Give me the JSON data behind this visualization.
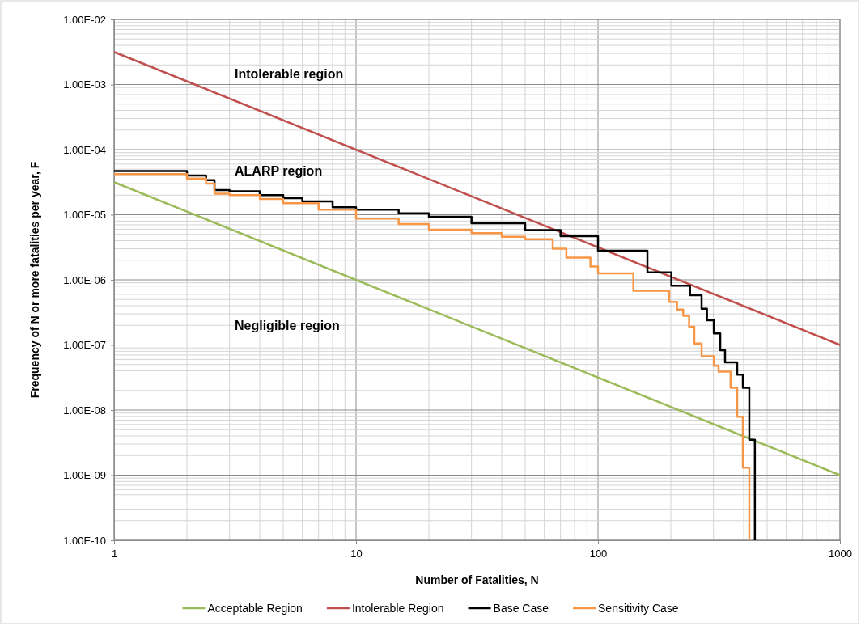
{
  "chart_data": {
    "type": "line",
    "xlabel": "Number of Fatalities, N",
    "ylabel": "Frequency of N or more fatalities per year, F",
    "log": "xy",
    "xlim": [
      1,
      1000
    ],
    "xticks": [
      1,
      10,
      100,
      1000
    ],
    "ylim": [
      1e-10,
      0.01
    ],
    "yticks": [
      {
        "value": 1e-10,
        "label": "1.00E-10"
      },
      {
        "value": 1e-09,
        "label": "1.00E-09"
      },
      {
        "value": 1e-08,
        "label": "1.00E-08"
      },
      {
        "value": 1e-07,
        "label": "1.00E-07"
      },
      {
        "value": 1e-06,
        "label": "1.00E-06"
      },
      {
        "value": 1e-05,
        "label": "1.00E-05"
      },
      {
        "value": 0.0001,
        "label": "1.00E-04"
      },
      {
        "value": 0.001,
        "label": "1.00E-03"
      },
      {
        "value": 0.01,
        "label": "1.00E-02"
      }
    ],
    "grid": true,
    "legend": "bottom",
    "annotations": [
      "Intolerable region",
      "ALARP region",
      "Negligible region"
    ],
    "series": [
      {
        "name": "Acceptable Region",
        "color": "#9bbb59",
        "x": [
          1,
          1000
        ],
        "values": [
          3.16e-05,
          1e-09
        ]
      },
      {
        "name": "Intolerable Region",
        "color": "#c0504d",
        "x": [
          1,
          1000
        ],
        "values": [
          0.00316,
          1e-07
        ]
      },
      {
        "name": "Base Case",
        "color": "#000000",
        "type": "step",
        "x": [
          1,
          2,
          2.4,
          2.6,
          3,
          4,
          5,
          6,
          8,
          10,
          15,
          20,
          30,
          50,
          70,
          100,
          160,
          201,
          240,
          268,
          282,
          301,
          320,
          335,
          376,
          397,
          422,
          445
        ],
        "values": [
          4.7e-05,
          4e-05,
          3.4e-05,
          2.4e-05,
          2.3e-05,
          2e-05,
          1.8e-05,
          1.6e-05,
          1.3e-05,
          1.2e-05,
          1.05e-05,
          9.3e-06,
          7.4e-06,
          5.8e-06,
          4.7e-06,
          2.8e-06,
          1.3e-06,
          8.1e-07,
          5.8e-07,
          3.6e-07,
          2.4e-07,
          1.5e-07,
          8.3e-08,
          5.4e-08,
          3.5e-08,
          2.2e-08,
          3.5e-09,
          1e-10
        ]
      },
      {
        "name": "Sensitivity Case",
        "color": "#f79646",
        "type": "step",
        "x": [
          1,
          2,
          2.4,
          2.6,
          3,
          4,
          5,
          7,
          10,
          15,
          20,
          30,
          40,
          50,
          65,
          74,
          93,
          100,
          140,
          197,
          212,
          225,
          238,
          250,
          268,
          301,
          315,
          353,
          376,
          397,
          422
        ],
        "values": [
          4.2e-05,
          3.6e-05,
          3e-05,
          2.1e-05,
          2e-05,
          1.75e-05,
          1.5e-05,
          1.2e-05,
          8.7e-06,
          7.2e-06,
          5.9e-06,
          5.2e-06,
          4.6e-06,
          4.2e-06,
          3e-06,
          2.2e-06,
          1.6e-06,
          1.26e-06,
          6.8e-07,
          4.6e-07,
          3.5e-07,
          2.8e-07,
          1.9e-07,
          1.05e-07,
          6.7e-08,
          4.8e-08,
          3.9e-08,
          2.2e-08,
          7.9e-09,
          1.3e-09,
          1e-10
        ]
      }
    ]
  }
}
